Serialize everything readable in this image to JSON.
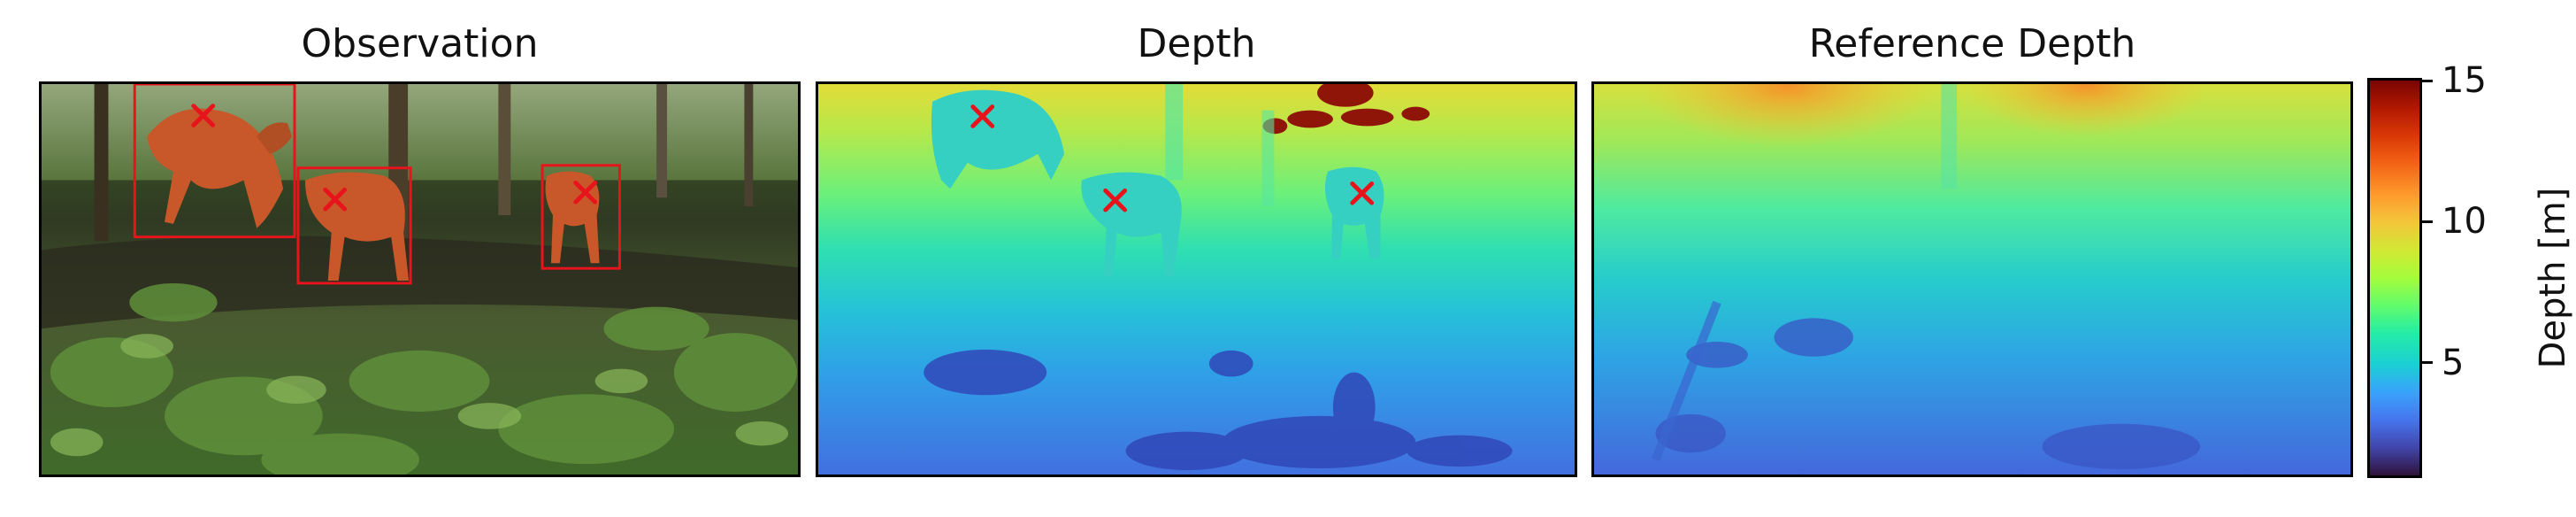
{
  "panels": {
    "observation": {
      "title": "Observation"
    },
    "depth": {
      "title": "Depth"
    },
    "reference": {
      "title": "Reference Depth"
    }
  },
  "colorbar": {
    "label": "Depth [m]",
    "range": [
      1,
      15
    ],
    "ticks": [
      {
        "value": 5,
        "label": "5"
      },
      {
        "value": 10,
        "label": "10"
      },
      {
        "value": 15,
        "label": "15"
      }
    ],
    "colormap": "turbo"
  },
  "markers": {
    "symbol": "x",
    "color": "#e8141c",
    "count": 3
  },
  "colors": {
    "detection_box": "#e8141c",
    "deer": "#c8582a",
    "near_depth": "#3b4fc8",
    "far_depth": "#f07a1e"
  }
}
